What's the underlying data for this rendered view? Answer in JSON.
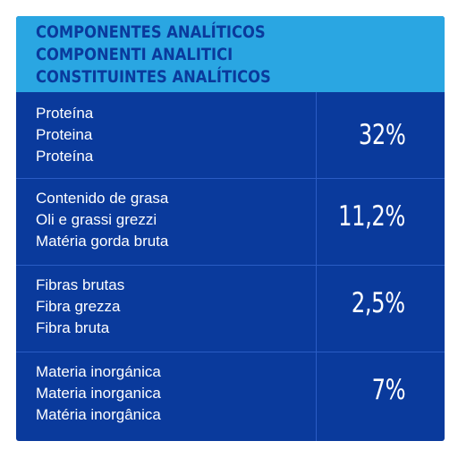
{
  "header": {
    "line1": "COMPONENTES ANALÍTICOS",
    "line2": "COMPONENTI ANALITICI",
    "line3": "CONSTITUINTES ANALÍTICOS"
  },
  "rows": [
    {
      "label1": "Proteína",
      "label2": "Proteina",
      "label3": "Proteína",
      "value": "32%"
    },
    {
      "label1": "Contenido de grasa",
      "label2": "Oli e grassi grezzi",
      "label3": "Matéria gorda bruta",
      "value": "11,2%"
    },
    {
      "label1": "Fibras brutas",
      "label2": "Fibra grezza",
      "label3": "Fibra bruta",
      "value": "2,5%"
    },
    {
      "label1": "Materia inorgánica",
      "label2": "Materia inorganica",
      "label3": "Matéria inorgânica",
      "value": "7%"
    }
  ],
  "colors": {
    "panel": "#0a3a9c",
    "header": "#2aa6e2",
    "divider": "#2a5cc4",
    "text": "#ffffff"
  }
}
